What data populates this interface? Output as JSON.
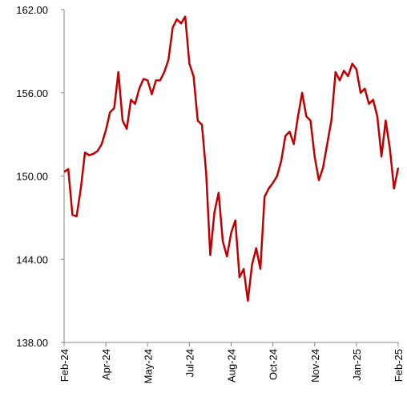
{
  "chart_data": {
    "type": "line",
    "categories": [
      "Feb-24",
      null,
      null,
      null,
      null,
      null,
      null,
      null,
      null,
      null,
      "Apr-24",
      null,
      null,
      null,
      null,
      null,
      null,
      null,
      null,
      null,
      "May-24",
      null,
      null,
      null,
      null,
      null,
      null,
      null,
      null,
      null,
      "Jul-24",
      null,
      null,
      null,
      null,
      null,
      null,
      null,
      null,
      null,
      "Aug-24",
      null,
      null,
      null,
      null,
      null,
      null,
      null,
      null,
      null,
      "Oct-24",
      null,
      null,
      null,
      null,
      null,
      null,
      null,
      null,
      null,
      "Nov-24",
      null,
      null,
      null,
      null,
      null,
      null,
      null,
      null,
      null,
      "Jan-25",
      null,
      null,
      null,
      null,
      null,
      null,
      null,
      null,
      null,
      "Feb-25"
    ],
    "series": [
      {
        "color": "#c00000",
        "values": [
          150.3,
          150.5,
          147.2,
          147.1,
          149.1,
          151.7,
          151.5,
          151.6,
          151.8,
          152.3,
          153.3,
          154.6,
          154.9,
          157.5,
          154.0,
          153.4,
          155.5,
          155.2,
          156.3,
          157.0,
          156.9,
          155.9,
          156.9,
          156.9,
          157.5,
          158.4,
          160.7,
          161.3,
          161.0,
          161.5,
          158.1,
          157.2,
          154.0,
          153.7,
          150.3,
          144.3,
          147.4,
          148.8,
          145.3,
          144.2,
          145.9,
          146.8,
          142.7,
          143.3,
          141.0,
          143.6,
          144.8,
          143.3,
          148.5,
          149.1,
          149.5,
          150.0,
          151.1,
          152.9,
          153.2,
          152.3,
          154.3,
          156.0,
          154.3,
          154.0,
          151.4,
          149.7,
          150.6,
          152.3,
          154.0,
          157.5,
          156.9,
          157.6,
          157.2,
          158.1,
          157.7,
          156.0,
          156.3,
          155.2,
          155.5,
          154.3,
          151.4,
          154.0,
          152.0,
          149.1,
          150.6
        ]
      }
    ],
    "ylim": [
      138,
      162
    ],
    "yticks": [
      {
        "value": 138,
        "label": "138.00"
      },
      {
        "value": 144,
        "label": "144.00"
      },
      {
        "value": 150,
        "label": "150.00"
      },
      {
        "value": 156,
        "label": "156.00"
      },
      {
        "value": 162,
        "label": "162.00"
      }
    ],
    "grid": false
  }
}
